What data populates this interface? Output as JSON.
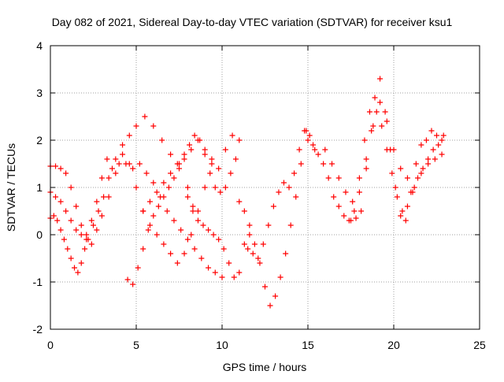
{
  "chart_data": {
    "type": "scatter",
    "title": "Day 082 of 2021, Sidereal Day-to-day VTEC variation (SDTVAR) for receiver ksu1",
    "xlabel": "GPS time / hours",
    "ylabel": "SDTVAR / TECUs",
    "xlim": [
      0,
      25
    ],
    "ylim": [
      -2,
      4
    ],
    "x_ticks": [
      0,
      5,
      10,
      15,
      20,
      25
    ],
    "y_ticks": [
      -2,
      -1,
      0,
      1,
      2,
      3,
      4
    ],
    "x_tick_labels": [
      "0",
      "5",
      "10",
      "15",
      "20",
      "25"
    ],
    "y_tick_labels": [
      "-2",
      "-1",
      "0",
      "1",
      "2",
      "3",
      "4"
    ],
    "grid": true,
    "marker": "+",
    "color": "#ff0000",
    "series": [
      {
        "x": [
          0.0,
          0.2,
          0.4,
          0.6,
          0.8,
          1.0,
          1.2,
          1.4,
          1.6,
          1.8,
          2.0,
          2.2,
          2.5,
          2.8,
          3.1,
          3.4,
          3.8,
          4.2,
          4.6,
          5.0,
          5.5,
          6.0,
          6.5,
          7.0,
          7.5,
          8.0,
          8.3
        ],
        "y": [
          0.35,
          0.4,
          0.3,
          0.1,
          -0.1,
          -0.3,
          -0.5,
          -0.7,
          -0.8,
          -0.6,
          -0.3,
          -0.1,
          0.2,
          0.5,
          0.8,
          1.2,
          1.6,
          1.9,
          2.1,
          2.3,
          2.5,
          2.3,
          2.0,
          1.7,
          1.4,
          1.0,
          0.6
        ]
      },
      {
        "x": [
          0.0,
          0.3,
          0.6,
          0.9,
          1.2,
          1.5,
          1.8,
          2.1,
          2.4,
          2.7,
          3.0,
          3.3,
          3.6,
          4.0,
          4.4,
          4.8,
          5.2,
          5.6,
          6.0,
          6.4,
          6.8,
          7.2,
          7.6,
          8.0,
          8.4,
          8.8,
          9.2,
          9.6,
          10.0
        ],
        "y": [
          1.45,
          1.45,
          1.4,
          1.3,
          1.0,
          0.6,
          0.2,
          0.0,
          0.3,
          0.7,
          1.2,
          1.6,
          1.4,
          1.5,
          1.5,
          1.4,
          1.5,
          1.3,
          1.1,
          0.8,
          0.5,
          0.3,
          0.1,
          -0.1,
          -0.3,
          -0.5,
          -0.7,
          -0.8,
          -0.9
        ]
      },
      {
        "x": [
          0.0,
          0.3,
          0.6,
          0.9,
          1.2,
          1.5,
          1.8,
          2.1,
          2.4,
          2.7,
          3.0,
          3.4,
          3.8,
          4.2,
          4.6,
          5.0,
          5.4,
          5.8,
          6.2,
          6.6,
          7.0,
          7.4,
          7.8,
          8.2,
          8.6,
          9.0,
          9.4
        ],
        "y": [
          0.9,
          0.8,
          0.7,
          0.5,
          0.3,
          0.1,
          0.0,
          -0.1,
          -0.2,
          0.1,
          0.4,
          0.8,
          1.3,
          1.7,
          1.5,
          1.0,
          0.5,
          0.2,
          0.0,
          -0.2,
          -0.4,
          -0.6,
          -0.4,
          0.0,
          0.5,
          1.0,
          1.5
        ]
      },
      {
        "x": [
          4.5,
          4.8,
          5.1,
          5.4,
          5.7,
          6.0,
          6.3,
          6.6,
          6.9,
          7.2,
          7.5,
          7.8,
          8.1,
          8.4,
          8.7,
          9.0,
          9.3,
          9.6,
          9.9,
          10.2,
          10.5,
          10.8
        ],
        "y": [
          -0.95,
          -1.05,
          -0.7,
          -0.3,
          0.1,
          0.4,
          0.6,
          0.8,
          1.0,
          1.2,
          1.5,
          1.7,
          1.9,
          2.1,
          2.0,
          1.7,
          1.3,
          1.0,
          0.9,
          1.0,
          1.3,
          1.6
        ]
      },
      {
        "x": [
          5.4,
          5.8,
          6.2,
          6.6,
          7.0,
          7.4,
          7.8,
          8.2,
          8.6,
          9.0,
          9.4,
          9.8,
          10.2,
          10.6,
          11.0
        ],
        "y": [
          0.5,
          0.7,
          0.9,
          1.1,
          1.3,
          1.5,
          1.6,
          1.8,
          2.0,
          1.8,
          1.6,
          1.4,
          1.8,
          2.1,
          2.0
        ]
      },
      {
        "x": [
          8.0,
          8.3,
          8.6,
          8.9,
          9.2,
          9.5,
          9.8,
          10.1,
          10.4,
          10.7,
          11.0,
          11.3,
          11.6
        ],
        "y": [
          0.8,
          0.5,
          0.3,
          0.2,
          0.1,
          0.0,
          -0.1,
          -0.3,
          -0.6,
          -0.9,
          -0.8,
          -0.2,
          0.0
        ]
      },
      {
        "x": [
          11.0,
          11.3,
          11.6,
          11.9,
          12.2,
          12.5,
          12.8,
          13.1,
          13.4,
          13.7,
          14.0,
          14.3,
          14.6,
          14.9
        ],
        "y": [
          0.7,
          0.5,
          0.2,
          -0.2,
          -0.6,
          -1.1,
          -1.5,
          -1.3,
          -0.9,
          -0.4,
          0.2,
          0.8,
          1.5,
          2.2
        ]
      },
      {
        "x": [
          11.5,
          11.8,
          12.1,
          12.4,
          12.7,
          13.0,
          13.3,
          13.6,
          13.9,
          14.2,
          14.5,
          14.8,
          15.1,
          15.4
        ],
        "y": [
          -0.3,
          -0.4,
          -0.5,
          -0.2,
          0.2,
          0.6,
          0.9,
          1.1,
          1.0,
          1.3,
          1.8,
          2.2,
          2.1,
          1.8
        ]
      },
      {
        "x": [
          15.0,
          15.3,
          15.6,
          15.9,
          16.2,
          16.5,
          16.8,
          17.1,
          17.4,
          17.7,
          18.0,
          18.3,
          18.6,
          18.9,
          19.2,
          19.5,
          19.8,
          20.1,
          20.4,
          20.7,
          21.0,
          21.3,
          21.6,
          21.9,
          22.2,
          22.5,
          22.8
        ],
        "y": [
          2.0,
          1.9,
          1.7,
          1.5,
          1.2,
          0.8,
          0.6,
          0.4,
          0.3,
          0.5,
          1.2,
          2.0,
          2.6,
          2.9,
          3.3,
          2.6,
          1.8,
          1.0,
          0.4,
          0.3,
          0.9,
          1.5,
          1.9,
          2.0,
          2.2,
          2.1,
          2.0
        ]
      },
      {
        "x": [
          16.0,
          16.4,
          16.8,
          17.2,
          17.6,
          18.0,
          18.4,
          18.8,
          19.2,
          19.6,
          20.0,
          20.4,
          20.8,
          21.2,
          21.6,
          22.0,
          22.4,
          22.8
        ],
        "y": [
          1.8,
          1.5,
          1.2,
          0.9,
          0.7,
          0.9,
          1.6,
          2.3,
          2.8,
          2.4,
          1.8,
          1.4,
          1.2,
          1.0,
          1.3,
          1.5,
          1.6,
          1.7
        ]
      },
      {
        "x": [
          17.5,
          17.8,
          18.1,
          18.4,
          18.7,
          19.0,
          19.3,
          19.6,
          19.9,
          20.2,
          20.5,
          20.8,
          21.1,
          21.4,
          21.7,
          22.0,
          22.3,
          22.6,
          22.9
        ],
        "y": [
          0.3,
          0.35,
          0.5,
          1.4,
          2.2,
          2.6,
          2.3,
          1.8,
          1.3,
          0.8,
          0.5,
          0.6,
          0.9,
          1.2,
          1.4,
          1.6,
          1.8,
          1.9,
          2.1
        ]
      }
    ]
  }
}
